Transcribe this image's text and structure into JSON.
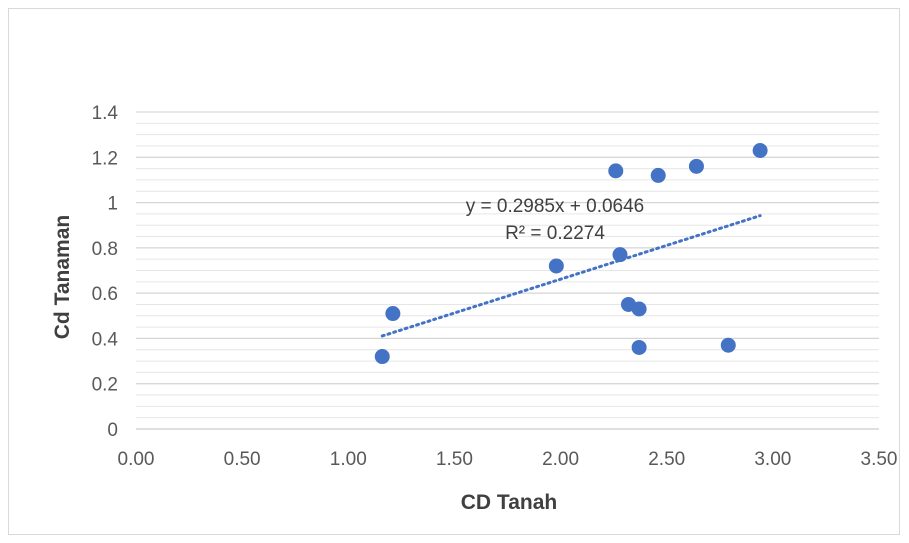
{
  "chart_data": {
    "type": "scatter",
    "xlabel": "CD Tanah",
    "ylabel": "Cd Tanaman",
    "xlim": [
      0,
      3.5
    ],
    "ylim": [
      0,
      1.4
    ],
    "x_ticks": [
      "0.00",
      "0.50",
      "1.00",
      "1.50",
      "2.00",
      "2.50",
      "3.00",
      "3.50"
    ],
    "y_ticks": [
      "0",
      "0.2",
      "0.4",
      "0.6",
      "0.8",
      "1",
      "1.2",
      "1.4"
    ],
    "x_tick_values": [
      0,
      0.5,
      1.0,
      1.5,
      2.0,
      2.5,
      3.0,
      3.5
    ],
    "y_tick_values": [
      0,
      0.2,
      0.4,
      0.6,
      0.8,
      1.0,
      1.2,
      1.4
    ],
    "minor_gridline_step": 0.05,
    "grid": true,
    "marker_color": "#4472c4",
    "trendline_color": "#4472c4",
    "points": [
      {
        "x": 1.16,
        "y": 0.32
      },
      {
        "x": 1.21,
        "y": 0.51
      },
      {
        "x": 1.98,
        "y": 0.72
      },
      {
        "x": 2.26,
        "y": 1.14
      },
      {
        "x": 2.28,
        "y": 0.77
      },
      {
        "x": 2.32,
        "y": 0.55
      },
      {
        "x": 2.37,
        "y": 0.53
      },
      {
        "x": 2.37,
        "y": 0.36
      },
      {
        "x": 2.46,
        "y": 1.12
      },
      {
        "x": 2.64,
        "y": 1.16
      },
      {
        "x": 2.79,
        "y": 0.37
      },
      {
        "x": 2.94,
        "y": 1.23
      }
    ],
    "trendline": {
      "type": "linear",
      "slope": 0.2985,
      "intercept": 0.0646,
      "x_range": [
        1.16,
        2.94
      ],
      "equation": "y = 0.2985x + 0.0646",
      "r_squared_label": "R² = 0.2274"
    }
  }
}
